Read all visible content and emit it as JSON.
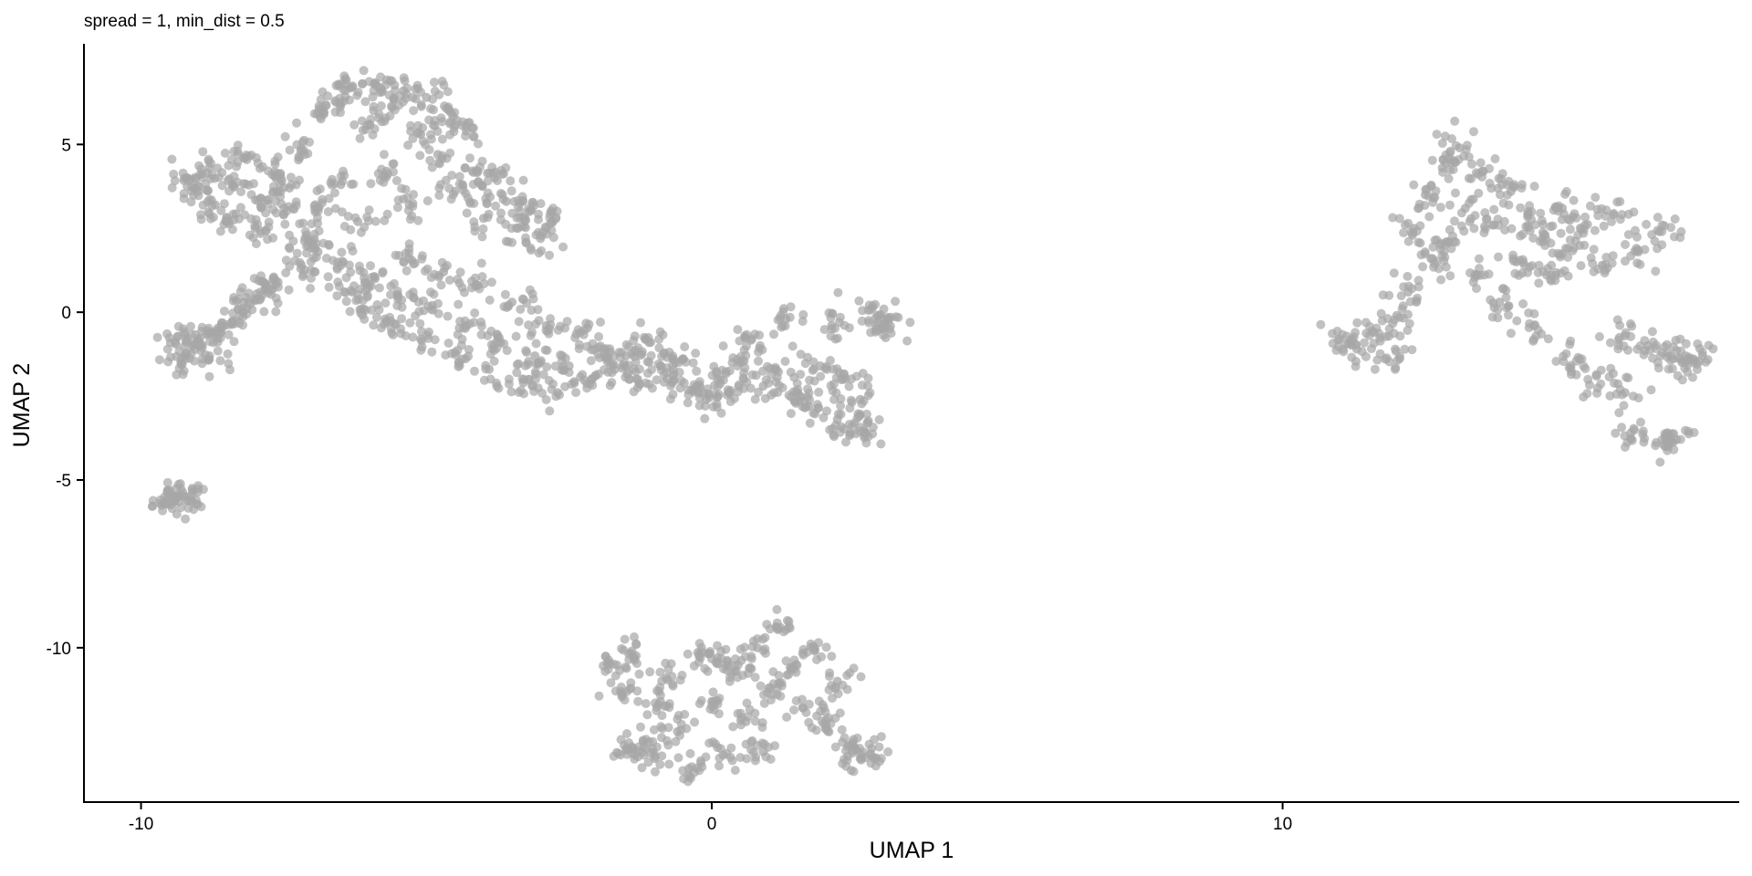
{
  "chart_data": {
    "type": "scatter",
    "title": "spread = 1, min_dist = 0.5",
    "xlabel": "UMAP 1",
    "ylabel": "UMAP 2",
    "xlim": [
      -11,
      18
    ],
    "ylim": [
      -14.6,
      8
    ],
    "xticks": [
      -10,
      0,
      10
    ],
    "xtick_labels": [
      "-10",
      "0",
      "10"
    ],
    "yticks": [
      5,
      0,
      -5,
      -10
    ],
    "ytick_labels": [
      "5",
      "0",
      "-5",
      "-10"
    ],
    "grid": false,
    "legend": "none",
    "point_color": "#a6a6a6",
    "series": [
      {
        "values": [
          [
            -9.4,
            -0.9
          ],
          [
            -9.3,
            -1.5
          ],
          [
            -9.1,
            -1.0
          ],
          [
            -9.0,
            -0.8
          ],
          [
            -8.8,
            -1.3
          ],
          [
            -8.6,
            -0.6
          ],
          [
            -8.4,
            -0.3
          ],
          [
            -8.3,
            0.1
          ],
          [
            -8.0,
            0.4
          ],
          [
            -7.8,
            0.7
          ],
          [
            -7.6,
            0.9
          ],
          [
            -7.2,
            1.3
          ],
          [
            -6.9,
            1.8
          ],
          [
            -9.6,
            -5.7
          ],
          [
            -9.4,
            -5.6
          ],
          [
            -9.2,
            -5.5
          ],
          [
            -9.1,
            -5.3
          ],
          [
            -9.2,
            4.0
          ],
          [
            -9.0,
            3.6
          ],
          [
            -8.8,
            4.3
          ],
          [
            -8.7,
            3.2
          ],
          [
            -8.5,
            2.7
          ],
          [
            -8.4,
            3.8
          ],
          [
            -8.2,
            4.6
          ],
          [
            -8.0,
            2.5
          ],
          [
            -7.9,
            3.4
          ],
          [
            -7.7,
            4.1
          ],
          [
            -7.5,
            2.9
          ],
          [
            -7.4,
            3.7
          ],
          [
            -7.2,
            4.8
          ],
          [
            -7.1,
            2.3
          ],
          [
            -6.9,
            3.1
          ],
          [
            -6.8,
            5.9
          ],
          [
            -6.6,
            6.3
          ],
          [
            -6.5,
            3.8
          ],
          [
            -6.3,
            6.7
          ],
          [
            -6.2,
            2.7
          ],
          [
            -6.0,
            5.6
          ],
          [
            -5.9,
            6.8
          ],
          [
            -5.7,
            4.2
          ],
          [
            -5.6,
            6.1
          ],
          [
            -5.4,
            6.6
          ],
          [
            -5.3,
            3.2
          ],
          [
            -5.1,
            5.3
          ],
          [
            -5.0,
            6.4
          ],
          [
            -4.8,
            4.7
          ],
          [
            -4.6,
            6.0
          ],
          [
            -4.5,
            3.6
          ],
          [
            -4.3,
            5.4
          ],
          [
            -4.1,
            4.2
          ],
          [
            -4.0,
            2.8
          ],
          [
            -3.8,
            4.0
          ],
          [
            -3.6,
            3.3
          ],
          [
            -3.4,
            2.5
          ],
          [
            -3.2,
            3.0
          ],
          [
            -3.0,
            2.2
          ],
          [
            -2.8,
            2.7
          ],
          [
            -6.5,
            1.4
          ],
          [
            -6.3,
            0.6
          ],
          [
            -6.1,
            0.1
          ],
          [
            -5.9,
            1.0
          ],
          [
            -5.7,
            -0.3
          ],
          [
            -5.5,
            0.5
          ],
          [
            -5.3,
            1.6
          ],
          [
            -5.1,
            -0.8
          ],
          [
            -4.9,
            0.2
          ],
          [
            -4.7,
            1.2
          ],
          [
            -4.5,
            -1.2
          ],
          [
            -4.3,
            -0.4
          ],
          [
            -4.1,
            0.8
          ],
          [
            -3.9,
            -1.7
          ],
          [
            -3.7,
            -0.9
          ],
          [
            -3.5,
            0.3
          ],
          [
            -3.3,
            -2.1
          ],
          [
            -3.1,
            -1.3
          ],
          [
            -2.9,
            -0.4
          ],
          [
            -2.7,
            -2.4
          ],
          [
            -2.5,
            -1.6
          ],
          [
            -2.3,
            -0.6
          ],
          [
            -2.1,
            -2.0
          ],
          [
            -1.9,
            -1.1
          ],
          [
            -1.7,
            -1.7
          ],
          [
            -1.5,
            -1.3
          ],
          [
            -1.3,
            -2.0
          ],
          [
            -1.1,
            -0.9
          ],
          [
            -0.9,
            -1.6
          ],
          [
            -0.7,
            -2.1
          ],
          [
            -0.5,
            -1.4
          ],
          [
            -0.3,
            -2.3
          ],
          [
            -0.1,
            -2.6
          ],
          [
            0.1,
            -2.0
          ],
          [
            0.3,
            -2.4
          ],
          [
            0.5,
            -1.5
          ],
          [
            0.7,
            -0.8
          ],
          [
            0.9,
            -2.2
          ],
          [
            1.1,
            -1.7
          ],
          [
            1.3,
            -0.2
          ],
          [
            1.5,
            -2.4
          ],
          [
            1.7,
            -2.8
          ],
          [
            1.9,
            -1.6
          ],
          [
            2.1,
            -0.4
          ],
          [
            2.3,
            -2.0
          ],
          [
            2.5,
            -3.3
          ],
          [
            2.7,
            -3.6
          ],
          [
            2.9,
            -0.1
          ],
          [
            3.0,
            -0.5
          ],
          [
            3.1,
            -0.2
          ],
          [
            2.6,
            -2.6
          ],
          [
            2.2,
            -3.2
          ],
          [
            -1.8,
            -10.5
          ],
          [
            -1.6,
            -11.3
          ],
          [
            -1.4,
            -10.1
          ],
          [
            -1.2,
            -12.8
          ],
          [
            -1.0,
            -13.3
          ],
          [
            -0.8,
            -10.9
          ],
          [
            -0.6,
            -12.5
          ],
          [
            -0.4,
            -13.6
          ],
          [
            -0.2,
            -10.3
          ],
          [
            0.0,
            -11.6
          ],
          [
            0.2,
            -13.2
          ],
          [
            0.4,
            -10.7
          ],
          [
            0.6,
            -12.2
          ],
          [
            0.8,
            -10.0
          ],
          [
            1.0,
            -11.2
          ],
          [
            1.2,
            -9.4
          ],
          [
            1.4,
            -10.6
          ],
          [
            1.6,
            -11.8
          ],
          [
            1.8,
            -10.1
          ],
          [
            2.0,
            -12.3
          ],
          [
            2.2,
            -11.0
          ],
          [
            2.4,
            -12.9
          ],
          [
            2.6,
            -13.3
          ],
          [
            2.8,
            -13.0
          ],
          [
            -1.5,
            -13.0
          ],
          [
            -0.9,
            -11.6
          ],
          [
            0.1,
            -10.3
          ],
          [
            0.9,
            -13.1
          ],
          [
            11.0,
            -0.8
          ],
          [
            11.3,
            -1.1
          ],
          [
            11.6,
            -0.6
          ],
          [
            11.8,
            -1.4
          ],
          [
            12.0,
            -0.1
          ],
          [
            12.2,
            0.6
          ],
          [
            12.3,
            2.5
          ],
          [
            12.5,
            3.5
          ],
          [
            12.6,
            1.6
          ],
          [
            12.8,
            4.3
          ],
          [
            12.9,
            2.1
          ],
          [
            13.1,
            4.9
          ],
          [
            13.2,
            3.1
          ],
          [
            13.4,
            1.1
          ],
          [
            13.5,
            4.2
          ],
          [
            13.7,
            2.6
          ],
          [
            13.8,
            0.3
          ],
          [
            14.0,
            3.6
          ],
          [
            14.1,
            1.5
          ],
          [
            14.3,
            2.9
          ],
          [
            14.4,
            -0.4
          ],
          [
            14.6,
            2.3
          ],
          [
            14.7,
            1.1
          ],
          [
            14.9,
            3.1
          ],
          [
            15.0,
            1.9
          ],
          [
            15.2,
            -1.4
          ],
          [
            15.3,
            2.6
          ],
          [
            15.5,
            -1.9
          ],
          [
            15.6,
            1.4
          ],
          [
            15.8,
            2.9
          ],
          [
            16.0,
            -0.7
          ],
          [
            16.2,
            1.9
          ],
          [
            16.4,
            -1.0
          ],
          [
            16.6,
            2.4
          ],
          [
            16.8,
            -1.3
          ],
          [
            17.0,
            -1.5
          ],
          [
            17.2,
            -1.4
          ],
          [
            16.1,
            -3.6
          ],
          [
            16.7,
            -4.0
          ],
          [
            16.9,
            -3.8
          ],
          [
            16.0,
            -2.4
          ]
        ]
      }
    ]
  }
}
